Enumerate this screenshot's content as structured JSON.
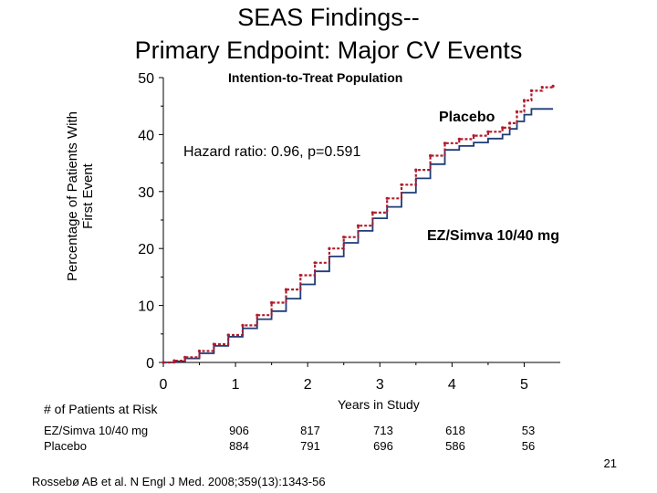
{
  "slide": {
    "title_line1": "SEAS Findings--",
    "title_line2": "Primary Endpoint: Major CV Events",
    "page_number": "21",
    "citation": "Rossebø AB et al. N Engl J Med. 2008;359(13):1343-56"
  },
  "colors": {
    "placebo": "#b01c2e",
    "ezsimva": "#1f3c78",
    "axis": "#000000"
  },
  "chart_data": {
    "type": "line",
    "title": "Intention-to-Treat Population",
    "xlabel": "Years in Study",
    "ylabel_line1": "Percentage of Patients With",
    "ylabel_line2": "First Event",
    "xlim": [
      0,
      5.5
    ],
    "ylim": [
      0,
      50
    ],
    "xticks": [
      0,
      1,
      2,
      3,
      4,
      5
    ],
    "yticks": [
      0,
      10,
      20,
      30,
      40,
      50
    ],
    "grid": false,
    "annotation": "Hazard ratio:  0.96,  p=0.591",
    "series": [
      {
        "name": "Placebo",
        "color": "#b01c2e",
        "x": [
          0,
          0.15,
          0.3,
          0.5,
          0.7,
          0.9,
          1.1,
          1.3,
          1.5,
          1.7,
          1.9,
          2.1,
          2.3,
          2.5,
          2.7,
          2.9,
          3.1,
          3.3,
          3.5,
          3.7,
          3.9,
          4.1,
          4.3,
          4.5,
          4.7,
          4.8,
          4.9,
          5.0,
          5.1,
          5.25,
          5.4
        ],
        "y": [
          0,
          0.3,
          0.9,
          2.0,
          3.2,
          4.8,
          6.5,
          8.3,
          10.5,
          12.8,
          15.3,
          17.5,
          20.0,
          22.0,
          24.0,
          26.3,
          28.8,
          31.2,
          33.8,
          36.3,
          38.5,
          39.2,
          39.8,
          40.5,
          41.2,
          42.0,
          44.0,
          46.0,
          47.7,
          48.3,
          48.5
        ]
      },
      {
        "name": "EZ/Simva 10/40 mg",
        "color": "#1f3c78",
        "x": [
          0,
          0.15,
          0.3,
          0.5,
          0.7,
          0.9,
          1.1,
          1.3,
          1.5,
          1.7,
          1.9,
          2.1,
          2.3,
          2.5,
          2.7,
          2.9,
          3.1,
          3.3,
          3.5,
          3.7,
          3.9,
          4.1,
          4.3,
          4.5,
          4.7,
          4.8,
          4.9,
          5.0,
          5.1,
          5.25,
          5.4
        ],
        "y": [
          0,
          0.2,
          0.7,
          1.6,
          2.9,
          4.5,
          6.0,
          7.6,
          9.0,
          11.2,
          13.7,
          16.0,
          18.6,
          21.0,
          23.1,
          25.3,
          27.3,
          29.8,
          32.3,
          34.8,
          37.3,
          38.0,
          38.6,
          39.3,
          40.0,
          41.0,
          42.3,
          43.5,
          44.5,
          44.5,
          44.5
        ]
      }
    ]
  },
  "risk_table": {
    "header": "# of Patients at Risk",
    "rows": [
      {
        "label": "EZ/Simva 10/40 mg",
        "values": [
          "906",
          "817",
          "713",
          "618",
          "53"
        ]
      },
      {
        "label": "Placebo",
        "values": [
          "884",
          "791",
          "696",
          "586",
          "56"
        ]
      }
    ]
  }
}
